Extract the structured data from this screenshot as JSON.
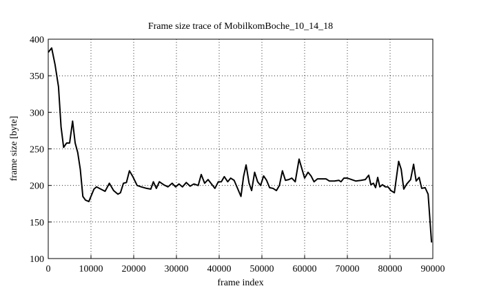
{
  "chart_data": {
    "type": "line",
    "title": "Frame size trace of MobilkomBoche_10_14_18",
    "x_label": "frame index",
    "y_label": "frame size [byte]",
    "xlim": [
      0,
      90000
    ],
    "xticks": [
      0,
      10000,
      20000,
      30000,
      40000,
      50000,
      60000,
      70000,
      80000,
      90000
    ],
    "ylim": [
      100,
      400
    ],
    "yticks": [
      100,
      150,
      200,
      250,
      300,
      350,
      400
    ],
    "grid": true,
    "series": [
      {
        "color": "#000000",
        "x": [
          0,
          800,
          1600,
          2400,
          3000,
          3600,
          4300,
          5000,
          5700,
          6300,
          6900,
          7500,
          8100,
          8700,
          9500,
          10700,
          11300,
          12300,
          13300,
          14300,
          15300,
          16300,
          16900,
          17600,
          18300,
          19000,
          19800,
          20800,
          21800,
          23000,
          24000,
          24600,
          25300,
          26000,
          27000,
          28000,
          29000,
          29800,
          30600,
          31400,
          32300,
          33200,
          34100,
          35100,
          35800,
          36600,
          37400,
          38200,
          39000,
          39800,
          40500,
          41200,
          42000,
          42700,
          43500,
          44300,
          45100,
          45700,
          46300,
          47000,
          47600,
          48300,
          49000,
          49700,
          50400,
          51100,
          51800,
          52600,
          53400,
          54100,
          54800,
          55500,
          56300,
          57000,
          57800,
          58700,
          60000,
          60800,
          61500,
          62200,
          63000,
          64000,
          65000,
          65800,
          67000,
          68000,
          68500,
          69200,
          70000,
          71000,
          72000,
          73200,
          74200,
          75000,
          75500,
          76100,
          76600,
          77100,
          77600,
          78200,
          78900,
          79500,
          80200,
          81000,
          82000,
          82600,
          83200,
          83900,
          84800,
          85500,
          86100,
          86800,
          87400,
          88200,
          88900,
          89700
        ],
        "values": [
          382,
          388,
          365,
          335,
          280,
          252,
          258,
          258,
          288,
          258,
          245,
          222,
          185,
          180,
          178,
          195,
          198,
          195,
          192,
          203,
          193,
          188,
          190,
          203,
          204,
          220,
          212,
          200,
          198,
          196,
          195,
          205,
          196,
          205,
          201,
          198,
          203,
          198,
          202,
          198,
          204,
          199,
          202,
          200,
          215,
          203,
          208,
          202,
          196,
          205,
          205,
          212,
          205,
          210,
          207,
          196,
          185,
          212,
          228,
          203,
          193,
          218,
          205,
          200,
          213,
          207,
          197,
          196,
          193,
          200,
          220,
          207,
          208,
          210,
          205,
          236,
          210,
          218,
          213,
          205,
          209,
          209,
          209,
          206,
          206,
          207,
          205,
          210,
          210,
          208,
          206,
          207,
          208,
          214,
          201,
          203,
          197,
          211,
          198,
          201,
          198,
          198,
          193,
          190,
          233,
          222,
          195,
          202,
          208,
          229,
          206,
          211,
          196,
          197,
          188,
          122
        ]
      }
    ]
  }
}
